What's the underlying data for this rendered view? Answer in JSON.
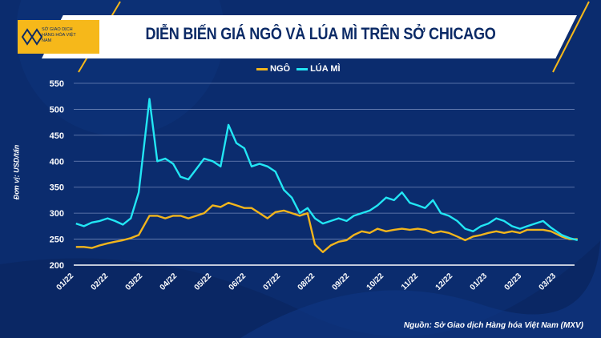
{
  "header": {
    "title": "DIỄN BIẾN GIÁ NGÔ VÀ LÚA MÌ TRÊN SỞ CHICAGO",
    "logo_text": "SỞ GIAO DỊCH HÀNG HÓA VIỆT NAM"
  },
  "footer": {
    "source": "Nguồn: Sở Giao dịch Hàng hóa Việt Nam (MXV)"
  },
  "colors": {
    "background": "#0b2c6e",
    "corn": "#f2b51c",
    "wheat": "#22e6f4",
    "accent": "#f6b81a"
  },
  "chart_data": {
    "type": "line",
    "title": "DIỄN BIẾN GIÁ NGÔ VÀ LÚA MÌ TRÊN SỞ CHICAGO",
    "ylabel": "Đơn vị: USD/tấn",
    "xlabel": "",
    "ylim": [
      200,
      550
    ],
    "yticks": [
      200,
      250,
      300,
      350,
      400,
      450,
      500,
      550
    ],
    "xticks": [
      "01/22",
      "02/22",
      "03/22",
      "04/22",
      "05/22",
      "06/22",
      "07/22",
      "08/22",
      "09/22",
      "10/22",
      "11/22",
      "12/22",
      "01/23",
      "02/23",
      "03/23"
    ],
    "grid": true,
    "legend_position": "top-center",
    "x": [
      "2022-01-03",
      "2022-01-10",
      "2022-01-17",
      "2022-01-24",
      "2022-01-31",
      "2022-02-07",
      "2022-02-14",
      "2022-02-21",
      "2022-02-28",
      "2022-03-07",
      "2022-03-14",
      "2022-03-21",
      "2022-03-28",
      "2022-04-04",
      "2022-04-11",
      "2022-04-18",
      "2022-04-25",
      "2022-05-02",
      "2022-05-09",
      "2022-05-16",
      "2022-05-23",
      "2022-05-30",
      "2022-06-06",
      "2022-06-13",
      "2022-06-20",
      "2022-06-27",
      "2022-07-04",
      "2022-07-11",
      "2022-07-18",
      "2022-07-25",
      "2022-08-01",
      "2022-08-08",
      "2022-08-15",
      "2022-08-22",
      "2022-08-29",
      "2022-09-05",
      "2022-09-12",
      "2022-09-19",
      "2022-09-26",
      "2022-10-03",
      "2022-10-10",
      "2022-10-17",
      "2022-10-24",
      "2022-10-31",
      "2022-11-07",
      "2022-11-14",
      "2022-11-21",
      "2022-11-28",
      "2022-12-05",
      "2022-12-12",
      "2022-12-19",
      "2022-12-26",
      "2023-01-02",
      "2023-01-09",
      "2023-01-16",
      "2023-01-23",
      "2023-01-30",
      "2023-02-06",
      "2023-02-13",
      "2023-02-20",
      "2023-02-27",
      "2023-03-06",
      "2023-03-13",
      "2023-03-20"
    ],
    "series": [
      {
        "name": "NGÔ",
        "color": "#f2b51c",
        "values": [
          235,
          235,
          233,
          238,
          242,
          245,
          248,
          252,
          258,
          295,
          295,
          290,
          295,
          295,
          290,
          295,
          300,
          315,
          312,
          320,
          315,
          310,
          310,
          300,
          290,
          302,
          305,
          300,
          295,
          300,
          240,
          225,
          238,
          245,
          248,
          258,
          265,
          262,
          270,
          265,
          268,
          270,
          268,
          270,
          268,
          262,
          265,
          262,
          255,
          248,
          255,
          258,
          262,
          265,
          262,
          265,
          262,
          268,
          268,
          268,
          265,
          255,
          250,
          250
        ]
      },
      {
        "name": "LÚA MÌ",
        "color": "#22e6f4",
        "values": [
          280,
          275,
          282,
          285,
          290,
          285,
          278,
          290,
          340,
          520,
          400,
          405,
          395,
          370,
          365,
          385,
          405,
          400,
          390,
          470,
          435,
          425,
          390,
          395,
          390,
          380,
          345,
          330,
          300,
          310,
          290,
          280,
          285,
          290,
          285,
          295,
          300,
          305,
          315,
          330,
          325,
          340,
          320,
          315,
          310,
          325,
          300,
          295,
          285,
          270,
          265,
          275,
          280,
          290,
          285,
          275,
          270,
          275,
          280,
          285,
          272,
          258,
          252,
          248
        ]
      }
    ]
  }
}
